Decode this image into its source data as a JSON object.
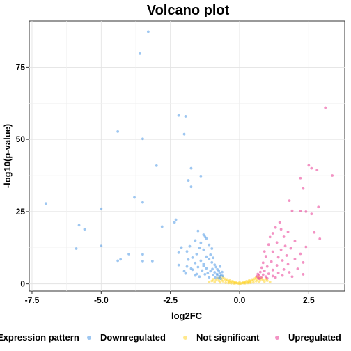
{
  "chart_data": {
    "type": "scatter",
    "title": "Volcano plot",
    "xlabel": "log2FC",
    "ylabel": "-log10(p-value)",
    "xlim": [
      -7.6,
      3.8
    ],
    "ylim": [
      -2.5,
      91
    ],
    "xticks": [
      {
        "value": -7.5,
        "label": "-7.5"
      },
      {
        "value": -5.0,
        "label": "-5.0"
      },
      {
        "value": -2.5,
        "label": "-2.5"
      },
      {
        "value": 0.0,
        "label": "0.0"
      },
      {
        "value": 2.5,
        "label": "2.5"
      }
    ],
    "yticks": [
      {
        "value": 0,
        "label": "0"
      },
      {
        "value": 25,
        "label": "25"
      },
      {
        "value": 50,
        "label": "50"
      },
      {
        "value": 75,
        "label": "75"
      }
    ],
    "grid": true,
    "legend": {
      "position": "bottom",
      "title": "Expression pattern",
      "entries": [
        "Downregulated",
        "Not significant",
        "Upregulated"
      ]
    },
    "series": [
      {
        "name": "Downregulated",
        "color": "#3d8fe3",
        "points": [
          [
            -3.3,
            87.3
          ],
          [
            -3.6,
            79.7
          ],
          [
            -4.4,
            52.7
          ],
          [
            -3.5,
            50.2
          ],
          [
            -2.2,
            58.3
          ],
          [
            -1.95,
            58.0
          ],
          [
            -2.0,
            51.8
          ],
          [
            -3.0,
            40.9
          ],
          [
            -1.75,
            40.0
          ],
          [
            -1.85,
            35.8
          ],
          [
            -1.75,
            33.6
          ],
          [
            -1.4,
            37.3
          ],
          [
            -7.0,
            27.8
          ],
          [
            -5.0,
            26.0
          ],
          [
            -3.5,
            28.2
          ],
          [
            -3.8,
            29.9
          ],
          [
            -5.8,
            20.3
          ],
          [
            -5.6,
            18.9
          ],
          [
            -2.3,
            22.2
          ],
          [
            -2.35,
            21.3
          ],
          [
            -2.8,
            19.8
          ],
          [
            -5.9,
            12.2
          ],
          [
            -5.0,
            13.1
          ],
          [
            -4.0,
            10.3
          ],
          [
            -3.5,
            10.2
          ],
          [
            -4.3,
            8.5
          ],
          [
            -4.4,
            8.0
          ],
          [
            -3.5,
            7.9
          ],
          [
            -3.15,
            7.9
          ],
          [
            -1.5,
            18.3
          ],
          [
            -1.3,
            17.0
          ],
          [
            -1.2,
            15.7
          ],
          [
            -1.4,
            14.2
          ],
          [
            -1.1,
            13.5
          ],
          [
            -1.6,
            15.0
          ],
          [
            -1.8,
            13.0
          ],
          [
            -2.1,
            12.6
          ],
          [
            -1.9,
            11.2
          ],
          [
            -2.2,
            10.8
          ],
          [
            -1.0,
            12.2
          ],
          [
            -1.3,
            11.8
          ],
          [
            -1.55,
            10.3
          ],
          [
            -1.7,
            9.1
          ],
          [
            -1.2,
            9.4
          ],
          [
            -1.05,
            10.1
          ],
          [
            -1.85,
            8.4
          ],
          [
            -1.4,
            8.0
          ],
          [
            -1.1,
            8.6
          ],
          [
            -0.95,
            9.0
          ],
          [
            -1.6,
            7.2
          ],
          [
            -1.3,
            6.9
          ],
          [
            -1.0,
            7.4
          ],
          [
            -0.9,
            6.6
          ],
          [
            -2.2,
            6.5
          ],
          [
            -1.9,
            6.0
          ],
          [
            -1.5,
            5.8
          ],
          [
            -1.2,
            5.4
          ],
          [
            -0.85,
            5.8
          ],
          [
            -0.8,
            5.0
          ],
          [
            -1.7,
            4.9
          ],
          [
            -1.35,
            4.6
          ],
          [
            -1.05,
            4.4
          ],
          [
            -0.9,
            4.0
          ],
          [
            -0.75,
            4.5
          ],
          [
            -0.72,
            3.7
          ],
          [
            -1.95,
            3.6
          ],
          [
            -1.55,
            3.4
          ],
          [
            -1.25,
            3.3
          ],
          [
            -0.95,
            3.1
          ],
          [
            -0.8,
            2.9
          ],
          [
            -0.7,
            2.6
          ],
          [
            -1.45,
            2.5
          ],
          [
            -1.1,
            2.3
          ],
          [
            -0.88,
            2.2
          ],
          [
            -0.75,
            2.0
          ],
          [
            -0.68,
            1.8
          ],
          [
            -1.3,
            6.2
          ],
          [
            -0.7,
            6.0
          ],
          [
            -1.15,
            3.7
          ],
          [
            -0.82,
            3.4
          ],
          [
            -0.66,
            3.0
          ],
          [
            -2.0,
            4.4
          ],
          [
            -1.6,
            2.9
          ],
          [
            -1.75,
            5.3
          ],
          [
            -0.98,
            5.1
          ],
          [
            -0.6,
            2.7
          ],
          [
            -0.63,
            4.1
          ],
          [
            -1.45,
            12.4
          ],
          [
            -1.25,
            16.3
          ]
        ]
      },
      {
        "name": "Not significant",
        "color": "#ffd11a",
        "points": [
          [
            -1.0,
            1.0
          ],
          [
            -0.95,
            1.6
          ],
          [
            -0.9,
            0.7
          ],
          [
            -0.85,
            1.3
          ],
          [
            -0.8,
            1.9
          ],
          [
            -0.75,
            1.1
          ],
          [
            -0.7,
            0.5
          ],
          [
            -0.65,
            1.5
          ],
          [
            -0.6,
            2.2
          ],
          [
            -0.6,
            0.9
          ],
          [
            -0.55,
            1.8
          ],
          [
            -0.5,
            1.2
          ],
          [
            -0.5,
            0.4
          ],
          [
            -0.45,
            1.5
          ],
          [
            -0.4,
            1.0
          ],
          [
            -0.4,
            0.3
          ],
          [
            -0.35,
            1.2
          ],
          [
            -0.3,
            0.8
          ],
          [
            -0.3,
            0.2
          ],
          [
            -0.25,
            0.9
          ],
          [
            -0.2,
            0.5
          ],
          [
            -0.2,
            0.15
          ],
          [
            -0.15,
            0.6
          ],
          [
            -0.1,
            0.3
          ],
          [
            -0.05,
            0.15
          ],
          [
            0.0,
            0.05
          ],
          [
            0.05,
            0.12
          ],
          [
            0.1,
            0.3
          ],
          [
            0.15,
            0.6
          ],
          [
            0.2,
            0.2
          ],
          [
            0.2,
            0.5
          ],
          [
            0.25,
            0.9
          ],
          [
            0.3,
            0.3
          ],
          [
            0.3,
            0.8
          ],
          [
            0.35,
            1.2
          ],
          [
            0.4,
            0.4
          ],
          [
            0.4,
            1.0
          ],
          [
            0.45,
            1.5
          ],
          [
            0.5,
            0.5
          ],
          [
            0.5,
            1.2
          ],
          [
            0.55,
            1.8
          ],
          [
            0.6,
            0.9
          ],
          [
            0.6,
            2.2
          ],
          [
            0.65,
            1.5
          ],
          [
            0.7,
            0.6
          ],
          [
            0.75,
            1.2
          ],
          [
            0.8,
            1.9
          ],
          [
            0.85,
            1.4
          ],
          [
            0.9,
            0.8
          ],
          [
            0.95,
            1.7
          ],
          [
            1.0,
            1.1
          ],
          [
            -1.1,
            0.6
          ],
          [
            1.1,
            0.7
          ],
          [
            -0.7,
            2.4
          ],
          [
            0.7,
            2.5
          ],
          [
            -0.35,
            0.5
          ],
          [
            0.35,
            0.5
          ],
          [
            -0.15,
            0.25
          ],
          [
            0.15,
            0.25
          ],
          [
            0.0,
            0.5
          ]
        ]
      },
      {
        "name": "Upregulated",
        "color": "#e8288a",
        "points": [
          [
            3.1,
            61.0
          ],
          [
            2.5,
            41.0
          ],
          [
            2.6,
            40.0
          ],
          [
            2.8,
            39.4
          ],
          [
            2.2,
            36.6
          ],
          [
            3.35,
            37.5
          ],
          [
            2.3,
            33.0
          ],
          [
            2.85,
            26.6
          ],
          [
            2.6,
            24.2
          ],
          [
            1.8,
            28.8
          ],
          [
            1.9,
            25.3
          ],
          [
            2.2,
            25.2
          ],
          [
            2.4,
            25.0
          ],
          [
            2.7,
            17.8
          ],
          [
            2.9,
            15.6
          ],
          [
            1.3,
            19.5
          ],
          [
            1.5,
            18.9
          ],
          [
            1.2,
            17.5
          ],
          [
            1.75,
            18.0
          ],
          [
            1.6,
            16.3
          ],
          [
            2.0,
            14.8
          ],
          [
            1.35,
            14.3
          ],
          [
            1.05,
            13.6
          ],
          [
            1.85,
            12.3
          ],
          [
            1.5,
            11.8
          ],
          [
            1.2,
            11.1
          ],
          [
            2.2,
            10.4
          ],
          [
            1.7,
            9.8
          ],
          [
            1.4,
            9.2
          ],
          [
            0.95,
            9.5
          ],
          [
            2.0,
            8.6
          ],
          [
            1.55,
            8.1
          ],
          [
            1.15,
            7.7
          ],
          [
            0.85,
            7.3
          ],
          [
            1.75,
            6.8
          ],
          [
            1.35,
            6.4
          ],
          [
            1.0,
            6.0
          ],
          [
            0.8,
            5.6
          ],
          [
            2.1,
            5.2
          ],
          [
            1.6,
            5.0
          ],
          [
            1.2,
            4.8
          ],
          [
            0.9,
            4.5
          ],
          [
            0.75,
            4.1
          ],
          [
            1.8,
            4.0
          ],
          [
            1.4,
            3.8
          ],
          [
            1.05,
            3.5
          ],
          [
            0.85,
            3.2
          ],
          [
            0.7,
            2.9
          ],
          [
            1.55,
            2.9
          ],
          [
            1.2,
            2.7
          ],
          [
            0.95,
            2.5
          ],
          [
            0.78,
            2.3
          ],
          [
            0.68,
            2.0
          ],
          [
            1.3,
            2.2
          ],
          [
            1.0,
            1.9
          ],
          [
            0.72,
            1.8
          ],
          [
            0.62,
            2.6
          ],
          [
            0.66,
            3.4
          ],
          [
            2.3,
            3.3
          ],
          [
            1.9,
            2.5
          ],
          [
            1.1,
            16.2
          ],
          [
            2.4,
            12.8
          ],
          [
            1.65,
            13.1
          ],
          [
            2.3,
            7.4
          ],
          [
            0.9,
            11.2
          ],
          [
            1.45,
            21.3
          ]
        ]
      }
    ]
  }
}
